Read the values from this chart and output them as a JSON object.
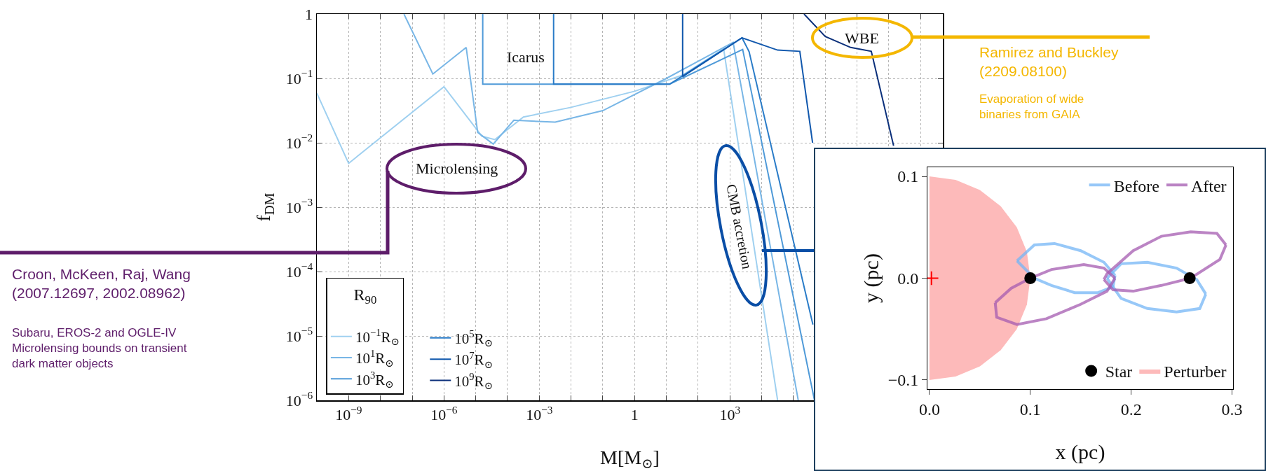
{
  "chart_data": [
    {
      "type": "line",
      "xlabel": "M[M$_{⊙}$]",
      "ylabel": "f$_{DM}$",
      "legend_title": "R$_{90}$",
      "legend": "bottom left",
      "grid": true,
      "log": "xy",
      "xlim": [
        1e-10,
        5000000000.0
      ],
      "ylim": [
        1e-06,
        1
      ],
      "xticks": [
        {
          "value": 1e-10,
          "label": null
        },
        {
          "value": 1e-09,
          "label": "10$^{−9}$"
        },
        {
          "value": 1e-08,
          "label": null
        },
        {
          "value": 1e-07,
          "label": null
        },
        {
          "value": 1e-06,
          "label": "10$^{−6}$"
        },
        {
          "value": 1e-05,
          "label": null
        },
        {
          "value": 0.0001,
          "label": null
        },
        {
          "value": 0.001,
          "label": "10$^{−3}$"
        },
        {
          "value": 0.01,
          "label": null
        },
        {
          "value": 0.1,
          "label": null
        },
        1,
        {
          "value": 10,
          "label": null
        },
        {
          "value": 100,
          "label": null
        },
        {
          "value": 1000,
          "label": "10$^{3}$"
        },
        {
          "value": 10000.0,
          "label": null
        },
        {
          "value": 100000.0,
          "label": null
        },
        {
          "value": 1000000.0,
          "label": null
        },
        {
          "value": 10000000.0,
          "label": null
        },
        {
          "value": 100000000.0,
          "label": null
        },
        {
          "value": 1000000000.0,
          "label": null
        }
      ],
      "yticks": [
        {
          "value": 1e-06,
          "label": "10$^{−6}$"
        },
        {
          "value": 1e-05,
          "label": "10$^{−5}$"
        },
        {
          "value": 0.0001,
          "label": "10$^{−4}$"
        },
        {
          "value": 0.001,
          "label": "10$^{−3}$"
        },
        {
          "value": 0.01,
          "label": "10$^{−2}$"
        },
        {
          "value": 0.1,
          "label": "10$^{−1}$"
        },
        1
      ],
      "series": [
        {
          "name": "10$^{−1}$R$_{⊙}$",
          "color": "#9fd0f0",
          "x": [
            1e-10,
            1e-09,
            1e-06,
            1.58e-05,
            3.98e-05,
            0.000316,
            0.01,
            1,
            31.6,
            631,
            31600
          ],
          "values": [
            0.0589,
            0.00479,
            0.0741,
            0.0126,
            0.0112,
            0.0251,
            0.0355,
            0.0631,
            0.112,
            0.288,
            1e-06
          ]
        },
        {
          "name": "10$^{1}$R$_{⊙}$",
          "color": "#78b6e6",
          "x": [
            5.5e-08,
            4.47e-07,
            5.01e-06,
            1.15e-05,
            3.55e-05,
            0.000158,
            0.00316,
            0.1,
            10,
            1259,
            141000
          ],
          "values": [
            1,
            0.117,
            0.302,
            0.0145,
            0.00955,
            0.0224,
            0.0209,
            0.0316,
            0.1,
            0.363,
            1e-06
          ]
        },
        {
          "name": "10$^{3}$R$_{⊙}$",
          "color": "#4f9ad8",
          "x": [
            1.66e-05,
            1.66e-05,
            12.6,
            2512,
            457000
          ],
          "values": [
            1,
            0.0813,
            0.0813,
            0.282,
            1e-06
          ]
        },
        {
          "name": "10$^{5}$R$_{⊙}$",
          "color": "#2a7cc8",
          "x": [
            0.00282,
            0.00282,
            1,
            12.6,
            2399,
            4000,
            407000
          ],
          "values": [
            1,
            0.0813,
            0.0813,
            0.0813,
            0.427,
            0.26,
            1.5e-05
          ]
        },
        {
          "name": "10$^{7}$R$_{⊙}$",
          "color": "#1158ad",
          "x": [
            32.4,
            32.4,
            2399,
            31600,
            158000,
            398000
          ],
          "values": [
            1,
            0.107,
            0.427,
            0.275,
            0.263,
            0.01
          ]
        },
        {
          "name": "10$^{9}$R$_{⊙}$",
          "color": "#0a2f7a",
          "x": [
            214000,
            1000000,
            6300000,
            28000000,
            141000000
          ],
          "values": [
            1,
            0.447,
            0.302,
            0.263,
            0.009
          ]
        }
      ],
      "annotations": [
        "Icarus",
        "Microlensing",
        "CMB accretion",
        "WBE",
        "Croon, McKeen, Raj, Wang\n(2007.12697, 2002.08962)",
        "Subaru, EROS-2 and OGLE-IV\nMicrolensing bounds on transient\ndark matter objects",
        "Ramirez and Buckley\n(2209.08100)",
        "Evaporation of wide\nbinaries from GAIA"
      ]
    },
    {
      "type": "line",
      "xlabel": "x (pc)",
      "ylabel": "y (pc)",
      "legend": "right",
      "grid": false,
      "xlim": [
        -0.002,
        0.301
      ],
      "ylim": [
        -0.109,
        0.109
      ],
      "xticks": [
        {
          "value": 0,
          "label": "0.0"
        },
        0.1,
        0.2,
        0.3
      ],
      "yticks": [
        {
          "value": -0.1,
          "label": "−0.1"
        },
        {
          "value": 0,
          "label": "0.0"
        },
        0.1
      ],
      "series": [
        {
          "name": "Perturber",
          "type": "area",
          "color": "#fdbaba",
          "x": [
            0,
            0.0259,
            0.05,
            0.0707,
            0.0866,
            0.0966,
            0.1,
            0.0966,
            0.0866,
            0.0707,
            0.05,
            0.0259,
            0
          ],
          "values": [
            0.1,
            0.0966,
            0.0866,
            0.0707,
            0.05,
            0.0259,
            0,
            -0.0259,
            -0.05,
            -0.0707,
            -0.0866,
            -0.0966,
            -0.1
          ]
        },
        {
          "name": "Before",
          "color": "#74b6f6",
          "x": [
            0.0868,
            0.104,
            0.124,
            0.15,
            0.173,
            0.184
          ],
          "values": [
            0.017,
            0.0327,
            0.0341,
            0.027,
            0.0156,
            0.0028
          ]
        },
        {
          "color": "#74b6f6",
          "x": [
            0.0868,
            0.104,
            0.121,
            0.144,
            0.167,
            0.182,
            0.184
          ],
          "values": [
            0.017,
            0,
            -0.0071,
            -0.0142,
            -0.0142,
            -0.0085,
            0.0028
          ]
        },
        {
          "color": "#74b6f6",
          "x": [
            0.176,
            0.19,
            0.216,
            0.245,
            0.265,
            0.274
          ],
          "values": [
            0,
            0.0142,
            0.0156,
            0.0099,
            -0.0014,
            -0.0156
          ]
        },
        {
          "color": "#74b6f6",
          "x": [
            0.176,
            0.19,
            0.216,
            0.245,
            0.268,
            0.274
          ],
          "values": [
            0,
            -0.0199,
            -0.0298,
            -0.0332,
            -0.0298,
            -0.0156
          ]
        },
        {
          "name": "After",
          "color": "#a45bb0",
          "x": [
            0.0652,
            0.081,
            0.1,
            0.121,
            0.153,
            0.173,
            0.184
          ],
          "values": [
            -0.0241,
            -0.0099,
            0,
            0.0085,
            0.0134,
            0.0099,
            0
          ]
        },
        {
          "color": "#a45bb0",
          "x": [
            0.0652,
            0.0667,
            0.0868,
            0.116,
            0.15,
            0.176,
            0.184
          ],
          "values": [
            -0.0241,
            -0.0384,
            -0.0455,
            -0.0398,
            -0.0256,
            -0.0128,
            0
          ]
        },
        {
          "color": "#a45bb0",
          "x": [
            0.173,
            0.176,
            0.202,
            0.23,
            0.259,
            0.285,
            0.294
          ],
          "values": [
            -0.0014,
            0.0043,
            0.027,
            0.0412,
            0.0455,
            0.044,
            0.0327
          ]
        },
        {
          "color": "#a45bb0",
          "x": [
            0.173,
            0.182,
            0.202,
            0.23,
            0.259,
            0.288,
            0.294
          ],
          "values": [
            -0.0014,
            -0.0114,
            -0.0128,
            -0.0071,
            0,
            0.0185,
            0.0327
          ]
        },
        {
          "name": "Star",
          "type": "scatter",
          "marker": "circle",
          "color": "#000000",
          "x": [
            0.1,
            0.258
          ],
          "values": [
            0,
            0
          ]
        },
        {
          "type": "scatter",
          "marker": "cross",
          "color": "#ff0000",
          "x": [
            0.002
          ],
          "values": [
            0
          ]
        }
      ]
    }
  ]
}
